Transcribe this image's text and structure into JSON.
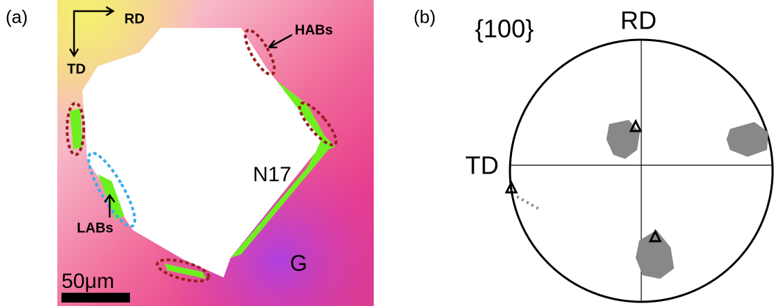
{
  "panel_a": {
    "label": "(a)",
    "directions": {
      "rd": "RD",
      "td": "TD"
    },
    "annotations": {
      "habs": "HABs",
      "labs": "LABs",
      "n17": "N17",
      "g": "G"
    },
    "scale_bar": "50μm"
  },
  "panel_b": {
    "label": "(b)",
    "plane": "{100}",
    "rd": "RD",
    "td": "TD"
  }
}
